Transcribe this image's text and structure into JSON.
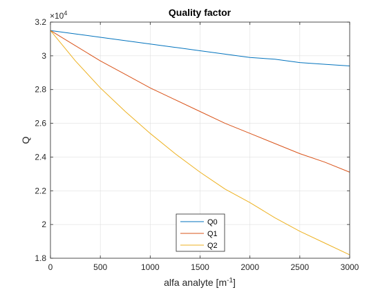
{
  "chart_data": {
    "type": "line",
    "title": "Quality factor",
    "xlabel": "alfa analyte [m",
    "xlabel_sup": "-1",
    "xlabel_end": "]",
    "ylabel": "Q",
    "y_exponent_base": "×10",
    "y_exponent_power": "4",
    "xlim": [
      0,
      3000
    ],
    "ylim": [
      1.8,
      3.2
    ],
    "xticks": [
      0,
      500,
      1000,
      1500,
      2000,
      2500,
      3000
    ],
    "xtick_labels": [
      "0",
      "500",
      "1000",
      "1500",
      "2000",
      "2500",
      "3000"
    ],
    "yticks": [
      1.8,
      2.0,
      2.2,
      2.4,
      2.6,
      2.8,
      3.0,
      3.2
    ],
    "ytick_labels": [
      "1.8",
      "2",
      "2.2",
      "2.4",
      "2.6",
      "2.8",
      "3",
      "3.2"
    ],
    "grid": true,
    "legend_position": "bottom-center",
    "x": [
      0,
      250,
      500,
      750,
      1000,
      1250,
      1500,
      1750,
      2000,
      2250,
      2500,
      2750,
      3000
    ],
    "series": [
      {
        "name": "Q0",
        "color": "#0072BD",
        "values": [
          3.15,
          3.13,
          3.11,
          3.09,
          3.07,
          3.05,
          3.03,
          3.01,
          2.99,
          2.98,
          2.96,
          2.95,
          2.94
        ]
      },
      {
        "name": "Q1",
        "color": "#D95319",
        "values": [
          3.15,
          3.06,
          2.97,
          2.89,
          2.81,
          2.74,
          2.67,
          2.6,
          2.54,
          2.48,
          2.42,
          2.37,
          2.31
        ]
      },
      {
        "name": "Q2",
        "color": "#EDB120",
        "values": [
          3.15,
          2.97,
          2.81,
          2.67,
          2.54,
          2.42,
          2.31,
          2.21,
          2.13,
          2.04,
          1.96,
          1.89,
          1.82
        ]
      }
    ]
  }
}
